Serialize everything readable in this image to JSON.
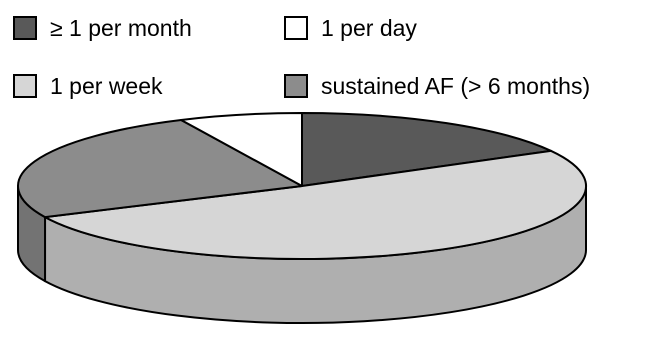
{
  "chart_data": {
    "type": "pie",
    "style": "3d",
    "legend_position": "top",
    "series": [
      {
        "label": "≥ 1 per month",
        "value": 17,
        "color": "#595959"
      },
      {
        "label": "1 per week",
        "value": 51,
        "color": "#d6d6d6"
      },
      {
        "label": "sustained AF (> 6 months)",
        "value": 25,
        "color": "#8c8c8c"
      },
      {
        "label": "1 per day",
        "value": 7,
        "color": "#ffffff"
      }
    ]
  }
}
